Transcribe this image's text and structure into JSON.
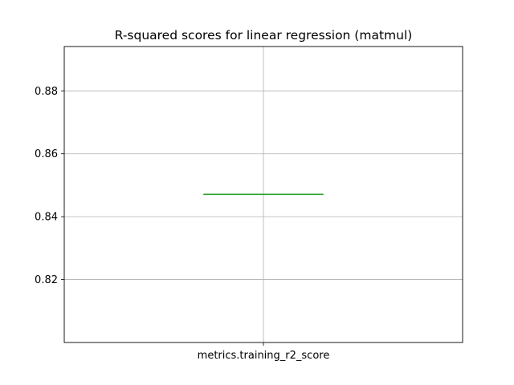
{
  "chart_data": {
    "type": "box",
    "title": "R-squared scores for linear regression (matmul)",
    "xlabel": "",
    "ylabel": "",
    "categories": [
      "metrics.training_r2_score"
    ],
    "series": [
      {
        "values": [
          0.8471
        ],
        "q1": 0.8471,
        "median": 0.8471,
        "q3": 0.8471,
        "whisker_low": 0.8471,
        "whisker_high": 0.8471
      }
    ],
    "ylim": [
      0.8,
      0.8941
    ],
    "yticks": [
      0.82,
      0.84,
      0.86,
      0.88
    ],
    "ytick_labels": [
      "0.82",
      "0.84",
      "0.86",
      "0.88"
    ],
    "grid": true,
    "colors": {
      "median": "#2ca02c",
      "box": "#1f77b4",
      "grid": "#b0b0b0",
      "axes": "#000000"
    }
  }
}
